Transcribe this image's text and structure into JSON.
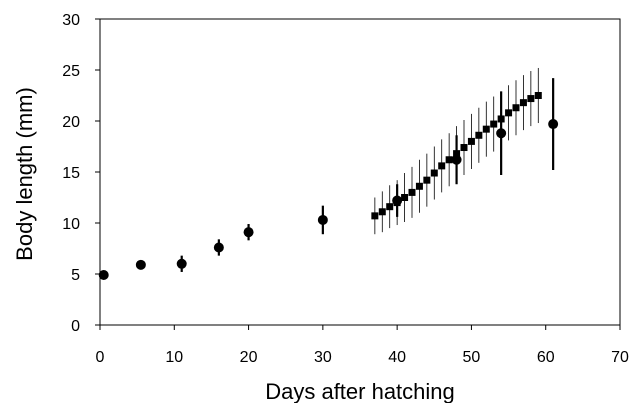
{
  "chart_data": {
    "type": "scatter",
    "title": "",
    "xlabel": "Days after hatching",
    "ylabel": "Body length (mm)",
    "xlim": [
      0,
      70
    ],
    "ylim": [
      0,
      30
    ],
    "xticks": [
      0,
      10,
      20,
      30,
      40,
      50,
      60,
      70
    ],
    "yticks": [
      0,
      5,
      10,
      15,
      20,
      25,
      30
    ],
    "grid": false,
    "legend": "none",
    "series": [
      {
        "marker": "circle",
        "color": "#000000",
        "points": [
          {
            "x": 0.5,
            "y": 4.9,
            "err": 0.3
          },
          {
            "x": 5.5,
            "y": 5.9,
            "err": 0.4
          },
          {
            "x": 11,
            "y": 6.0,
            "err": 0.8
          },
          {
            "x": 16,
            "y": 7.6,
            "err": 0.8
          },
          {
            "x": 20,
            "y": 9.1,
            "err": 0.8
          },
          {
            "x": 30,
            "y": 10.3,
            "err": 1.4
          },
          {
            "x": 40,
            "y": 12.2,
            "err": 1.6
          },
          {
            "x": 48,
            "y": 16.2,
            "err": 2.4
          },
          {
            "x": 54,
            "y": 18.8,
            "err": 4.1
          },
          {
            "x": 61,
            "y": 19.7,
            "err": 4.5
          }
        ]
      },
      {
        "marker": "square",
        "color": "#000000",
        "points": [
          {
            "x": 37,
            "y": 10.7,
            "err": 1.8
          },
          {
            "x": 38,
            "y": 11.1,
            "err": 2.0
          },
          {
            "x": 39,
            "y": 11.6,
            "err": 2.1
          },
          {
            "x": 40,
            "y": 12.0,
            "err": 2.2
          },
          {
            "x": 41,
            "y": 12.5,
            "err": 2.4
          },
          {
            "x": 42,
            "y": 13.0,
            "err": 2.5
          },
          {
            "x": 43,
            "y": 13.6,
            "err": 2.6
          },
          {
            "x": 44,
            "y": 14.2,
            "err": 2.6
          },
          {
            "x": 45,
            "y": 14.9,
            "err": 2.6
          },
          {
            "x": 46,
            "y": 15.6,
            "err": 2.6
          },
          {
            "x": 47,
            "y": 16.2,
            "err": 2.6
          },
          {
            "x": 48,
            "y": 16.8,
            "err": 2.7
          },
          {
            "x": 49,
            "y": 17.4,
            "err": 2.7
          },
          {
            "x": 50,
            "y": 18.0,
            "err": 2.7
          },
          {
            "x": 51,
            "y": 18.6,
            "err": 2.7
          },
          {
            "x": 52,
            "y": 19.2,
            "err": 2.7
          },
          {
            "x": 53,
            "y": 19.7,
            "err": 2.7
          },
          {
            "x": 54,
            "y": 20.2,
            "err": 2.7
          },
          {
            "x": 55,
            "y": 20.8,
            "err": 2.7
          },
          {
            "x": 56,
            "y": 21.3,
            "err": 2.7
          },
          {
            "x": 57,
            "y": 21.8,
            "err": 2.7
          },
          {
            "x": 58,
            "y": 22.2,
            "err": 2.7
          },
          {
            "x": 59,
            "y": 22.5,
            "err": 2.7
          }
        ]
      }
    ]
  }
}
